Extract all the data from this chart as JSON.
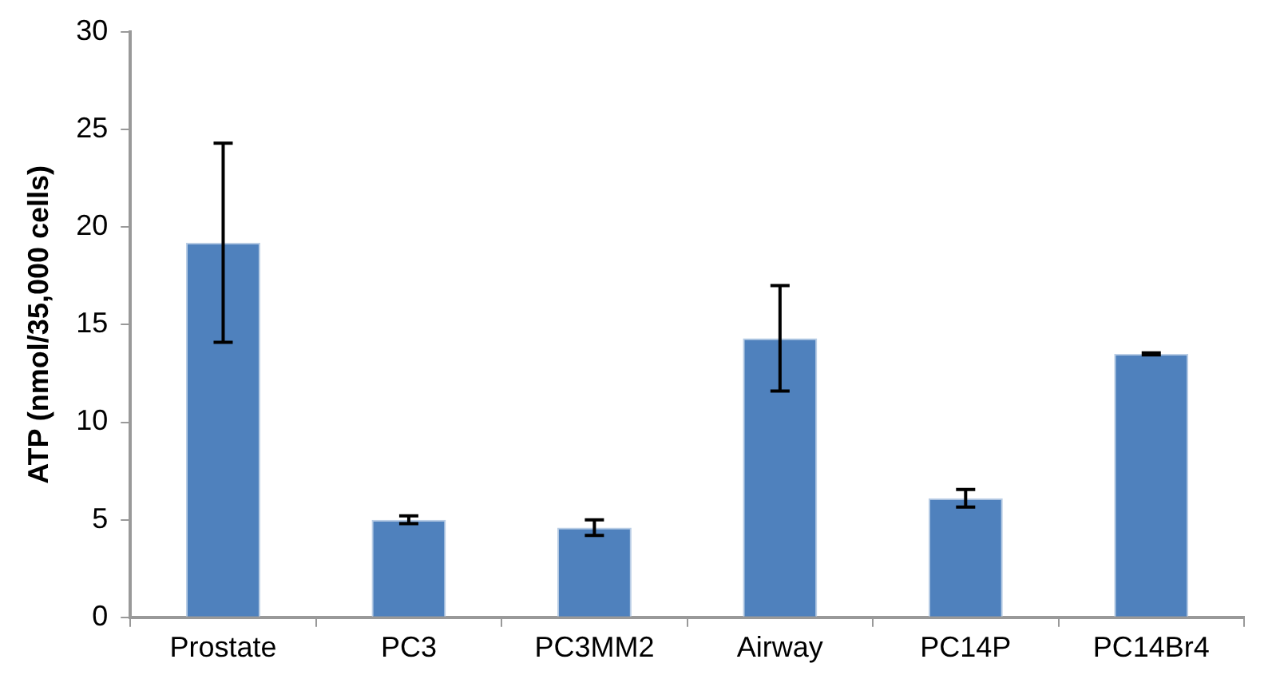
{
  "chart_data": {
    "type": "bar",
    "ylabel": "ATP (nmol/35,000 cells)",
    "categories": [
      "Prostate",
      "PC3",
      "PC3MM2",
      "Airway",
      "PC14P",
      "PC14Br4"
    ],
    "values": [
      19.2,
      5.0,
      4.6,
      14.3,
      6.1,
      13.5
    ],
    "errors": [
      5.1,
      0.2,
      0.4,
      2.7,
      0.45,
      0.05
    ],
    "color": "#4f81bd",
    "ylim": [
      0,
      30
    ],
    "yticks": [
      0,
      5,
      10,
      15,
      20,
      25,
      30
    ],
    "grid": false,
    "legend": false
  }
}
